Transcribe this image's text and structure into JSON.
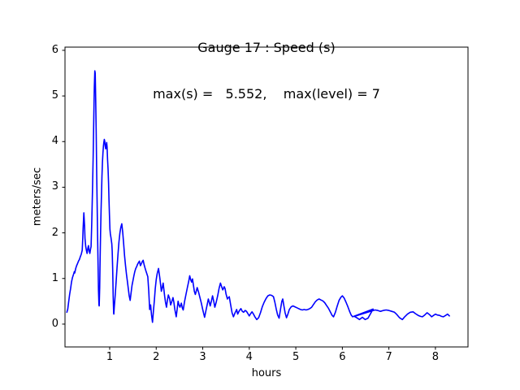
{
  "figure": {
    "background": "#ffffff",
    "text_color": "#000000"
  },
  "chart_data": {
    "type": "line",
    "title": "Gauge 17 : Speed (s)",
    "subtitle": "max(s) =   5.552,    max(level) = 7",
    "xlabel": "hours",
    "ylabel": "meters/sec",
    "stats": {
      "max_s": 5.552,
      "max_level": 7
    },
    "x_ticks": [
      1,
      2,
      3,
      4,
      5,
      6,
      7,
      8
    ],
    "y_ticks": [
      0,
      1,
      2,
      3,
      4,
      5,
      6
    ],
    "xlim": [
      0.04,
      8.7
    ],
    "ylim": [
      -0.5,
      6.07
    ],
    "grid": false,
    "legend_position": "none",
    "line_color": "#0000ff",
    "series": [
      {
        "name": "speed",
        "points": [
          [
            0.08,
            0.26
          ],
          [
            0.1,
            0.33
          ],
          [
            0.12,
            0.5
          ],
          [
            0.14,
            0.65
          ],
          [
            0.16,
            0.78
          ],
          [
            0.18,
            0.92
          ],
          [
            0.2,
            1.02
          ],
          [
            0.22,
            1.08
          ],
          [
            0.24,
            1.15
          ],
          [
            0.25,
            1.12
          ],
          [
            0.27,
            1.22
          ],
          [
            0.29,
            1.28
          ],
          [
            0.31,
            1.33
          ],
          [
            0.33,
            1.38
          ],
          [
            0.35,
            1.42
          ],
          [
            0.37,
            1.48
          ],
          [
            0.39,
            1.53
          ],
          [
            0.41,
            1.62
          ],
          [
            0.42,
            1.85
          ],
          [
            0.43,
            2.1
          ],
          [
            0.445,
            2.44
          ],
          [
            0.46,
            2.15
          ],
          [
            0.47,
            1.88
          ],
          [
            0.485,
            1.7
          ],
          [
            0.5,
            1.62
          ],
          [
            0.515,
            1.55
          ],
          [
            0.53,
            1.66
          ],
          [
            0.545,
            1.72
          ],
          [
            0.56,
            1.6
          ],
          [
            0.575,
            1.55
          ],
          [
            0.59,
            1.65
          ],
          [
            0.6,
            1.7
          ],
          [
            0.615,
            2.2
          ],
          [
            0.63,
            2.9
          ],
          [
            0.645,
            3.7
          ],
          [
            0.66,
            4.6
          ],
          [
            0.67,
            5.2
          ],
          [
            0.68,
            5.55
          ],
          [
            0.69,
            5.5
          ],
          [
            0.7,
            4.9
          ],
          [
            0.71,
            4.2
          ],
          [
            0.72,
            3.45
          ],
          [
            0.73,
            2.7
          ],
          [
            0.74,
            1.95
          ],
          [
            0.75,
            1.3
          ],
          [
            0.76,
            0.75
          ],
          [
            0.77,
            0.42
          ],
          [
            0.775,
            0.4
          ],
          [
            0.785,
            0.8
          ],
          [
            0.795,
            1.4
          ],
          [
            0.805,
            2.0
          ],
          [
            0.815,
            2.5
          ],
          [
            0.825,
            2.9
          ],
          [
            0.835,
            3.25
          ],
          [
            0.845,
            3.55
          ],
          [
            0.855,
            3.75
          ],
          [
            0.865,
            3.9
          ],
          [
            0.875,
            3.98
          ],
          [
            0.885,
            4.05
          ],
          [
            0.895,
            4.0
          ],
          [
            0.905,
            3.9
          ],
          [
            0.915,
            3.84
          ],
          [
            0.925,
            3.92
          ],
          [
            0.935,
            3.98
          ],
          [
            0.945,
            3.88
          ],
          [
            0.955,
            3.6
          ],
          [
            0.965,
            3.4
          ],
          [
            0.975,
            3.1
          ],
          [
            0.985,
            2.75
          ],
          [
            0.995,
            2.4
          ],
          [
            1.005,
            2.08
          ],
          [
            1.015,
            1.98
          ],
          [
            1.03,
            1.88
          ],
          [
            1.045,
            1.76
          ],
          [
            1.055,
            1.6
          ],
          [
            1.065,
            1.2
          ],
          [
            1.075,
            0.6
          ],
          [
            1.085,
            0.24
          ],
          [
            1.09,
            0.22
          ],
          [
            1.1,
            0.38
          ],
          [
            1.12,
            0.66
          ],
          [
            1.14,
            0.95
          ],
          [
            1.16,
            1.25
          ],
          [
            1.18,
            1.55
          ],
          [
            1.2,
            1.8
          ],
          [
            1.22,
            2.0
          ],
          [
            1.24,
            2.12
          ],
          [
            1.26,
            2.2
          ],
          [
            1.28,
            2.02
          ],
          [
            1.3,
            1.76
          ],
          [
            1.32,
            1.5
          ],
          [
            1.34,
            1.28
          ],
          [
            1.36,
            1.1
          ],
          [
            1.38,
            0.95
          ],
          [
            1.4,
            0.78
          ],
          [
            1.42,
            0.62
          ],
          [
            1.44,
            0.52
          ],
          [
            1.46,
            0.68
          ],
          [
            1.48,
            0.85
          ],
          [
            1.5,
            0.95
          ],
          [
            1.52,
            1.06
          ],
          [
            1.54,
            1.15
          ],
          [
            1.56,
            1.22
          ],
          [
            1.58,
            1.26
          ],
          [
            1.6,
            1.31
          ],
          [
            1.62,
            1.35
          ],
          [
            1.64,
            1.38
          ],
          [
            1.66,
            1.28
          ],
          [
            1.68,
            1.32
          ],
          [
            1.7,
            1.37
          ],
          [
            1.72,
            1.4
          ],
          [
            1.74,
            1.3
          ],
          [
            1.76,
            1.23
          ],
          [
            1.78,
            1.16
          ],
          [
            1.8,
            1.1
          ],
          [
            1.82,
            1.04
          ],
          [
            1.84,
            0.72
          ],
          [
            1.86,
            0.32
          ],
          [
            1.88,
            0.42
          ],
          [
            1.9,
            0.2
          ],
          [
            1.92,
            0.04
          ],
          [
            1.94,
            0.28
          ],
          [
            1.96,
            0.52
          ],
          [
            1.98,
            0.78
          ],
          [
            2.0,
            0.98
          ],
          [
            2.02,
            1.1
          ],
          [
            2.05,
            1.22
          ],
          [
            2.08,
            1.0
          ],
          [
            2.11,
            0.72
          ],
          [
            2.13,
            0.8
          ],
          [
            2.15,
            0.9
          ],
          [
            2.18,
            0.62
          ],
          [
            2.2,
            0.48
          ],
          [
            2.22,
            0.37
          ],
          [
            2.24,
            0.52
          ],
          [
            2.26,
            0.64
          ],
          [
            2.29,
            0.55
          ],
          [
            2.31,
            0.42
          ],
          [
            2.33,
            0.48
          ],
          [
            2.36,
            0.58
          ],
          [
            2.38,
            0.48
          ],
          [
            2.4,
            0.32
          ],
          [
            2.43,
            0.16
          ],
          [
            2.45,
            0.32
          ],
          [
            2.47,
            0.5
          ],
          [
            2.49,
            0.42
          ],
          [
            2.51,
            0.37
          ],
          [
            2.54,
            0.46
          ],
          [
            2.56,
            0.36
          ],
          [
            2.58,
            0.31
          ],
          [
            2.61,
            0.5
          ],
          [
            2.64,
            0.65
          ],
          [
            2.67,
            0.8
          ],
          [
            2.7,
            0.95
          ],
          [
            2.72,
            1.06
          ],
          [
            2.74,
            0.98
          ],
          [
            2.76,
            0.92
          ],
          [
            2.78,
            0.99
          ],
          [
            2.8,
            0.85
          ],
          [
            2.82,
            0.72
          ],
          [
            2.84,
            0.65
          ],
          [
            2.86,
            0.72
          ],
          [
            2.88,
            0.8
          ],
          [
            2.91,
            0.7
          ],
          [
            2.94,
            0.58
          ],
          [
            2.97,
            0.46
          ],
          [
            3.0,
            0.32
          ],
          [
            3.04,
            0.15
          ],
          [
            3.07,
            0.3
          ],
          [
            3.1,
            0.45
          ],
          [
            3.12,
            0.55
          ],
          [
            3.14,
            0.48
          ],
          [
            3.16,
            0.4
          ],
          [
            3.19,
            0.52
          ],
          [
            3.21,
            0.62
          ],
          [
            3.24,
            0.48
          ],
          [
            3.26,
            0.37
          ],
          [
            3.29,
            0.48
          ],
          [
            3.32,
            0.62
          ],
          [
            3.35,
            0.78
          ],
          [
            3.38,
            0.9
          ],
          [
            3.4,
            0.84
          ],
          [
            3.43,
            0.75
          ],
          [
            3.46,
            0.82
          ],
          [
            3.48,
            0.78
          ],
          [
            3.5,
            0.66
          ],
          [
            3.53,
            0.55
          ],
          [
            3.55,
            0.58
          ],
          [
            3.57,
            0.6
          ],
          [
            3.6,
            0.42
          ],
          [
            3.63,
            0.25
          ],
          [
            3.66,
            0.16
          ],
          [
            3.69,
            0.24
          ],
          [
            3.71,
            0.28
          ],
          [
            3.73,
            0.32
          ],
          [
            3.75,
            0.22
          ],
          [
            3.77,
            0.26
          ],
          [
            3.79,
            0.3
          ],
          [
            3.82,
            0.34
          ],
          [
            3.85,
            0.28
          ],
          [
            3.88,
            0.26
          ],
          [
            3.91,
            0.3
          ],
          [
            3.94,
            0.28
          ],
          [
            3.97,
            0.23
          ],
          [
            4.0,
            0.18
          ],
          [
            4.03,
            0.23
          ],
          [
            4.06,
            0.27
          ],
          [
            4.09,
            0.22
          ],
          [
            4.12,
            0.16
          ],
          [
            4.16,
            0.1
          ],
          [
            4.2,
            0.14
          ],
          [
            4.24,
            0.25
          ],
          [
            4.28,
            0.38
          ],
          [
            4.32,
            0.48
          ],
          [
            4.36,
            0.56
          ],
          [
            4.4,
            0.62
          ],
          [
            4.44,
            0.64
          ],
          [
            4.48,
            0.63
          ],
          [
            4.52,
            0.6
          ],
          [
            4.55,
            0.48
          ],
          [
            4.58,
            0.33
          ],
          [
            4.61,
            0.2
          ],
          [
            4.64,
            0.13
          ],
          [
            4.67,
            0.32
          ],
          [
            4.7,
            0.5
          ],
          [
            4.72,
            0.55
          ],
          [
            4.74,
            0.42
          ],
          [
            4.77,
            0.25
          ],
          [
            4.8,
            0.14
          ],
          [
            4.83,
            0.22
          ],
          [
            4.86,
            0.32
          ],
          [
            4.9,
            0.38
          ],
          [
            4.94,
            0.4
          ],
          [
            4.98,
            0.38
          ],
          [
            5.02,
            0.36
          ],
          [
            5.06,
            0.34
          ],
          [
            5.1,
            0.32
          ],
          [
            5.14,
            0.31
          ],
          [
            5.18,
            0.32
          ],
          [
            5.22,
            0.31
          ],
          [
            5.26,
            0.32
          ],
          [
            5.3,
            0.34
          ],
          [
            5.34,
            0.37
          ],
          [
            5.38,
            0.43
          ],
          [
            5.42,
            0.49
          ],
          [
            5.46,
            0.53
          ],
          [
            5.5,
            0.55
          ],
          [
            5.54,
            0.53
          ],
          [
            5.58,
            0.51
          ],
          [
            5.62,
            0.47
          ],
          [
            5.66,
            0.41
          ],
          [
            5.7,
            0.35
          ],
          [
            5.74,
            0.27
          ],
          [
            5.78,
            0.19
          ],
          [
            5.81,
            0.16
          ],
          [
            5.85,
            0.26
          ],
          [
            5.89,
            0.4
          ],
          [
            5.93,
            0.52
          ],
          [
            5.97,
            0.59
          ],
          [
            6.0,
            0.62
          ],
          [
            6.04,
            0.57
          ],
          [
            6.08,
            0.48
          ],
          [
            6.12,
            0.38
          ],
          [
            6.16,
            0.27
          ],
          [
            6.19,
            0.2
          ],
          [
            6.22,
            0.16
          ],
          [
            6.66,
            0.33
          ],
          [
            6.55,
            0.13
          ],
          [
            6.49,
            0.1
          ],
          [
            6.43,
            0.15
          ],
          [
            6.37,
            0.1
          ],
          [
            6.31,
            0.14
          ],
          [
            6.26,
            0.17
          ],
          [
            6.7,
            0.31
          ],
          [
            6.76,
            0.3
          ],
          [
            6.82,
            0.28
          ],
          [
            6.88,
            0.3
          ],
          [
            6.94,
            0.31
          ],
          [
            7.0,
            0.3
          ],
          [
            7.06,
            0.28
          ],
          [
            7.12,
            0.26
          ],
          [
            7.17,
            0.21
          ],
          [
            7.23,
            0.14
          ],
          [
            7.29,
            0.1
          ],
          [
            7.34,
            0.16
          ],
          [
            7.4,
            0.22
          ],
          [
            7.46,
            0.26
          ],
          [
            7.52,
            0.27
          ],
          [
            7.57,
            0.23
          ],
          [
            7.63,
            0.19
          ],
          [
            7.68,
            0.17
          ],
          [
            7.72,
            0.16
          ],
          [
            7.77,
            0.2
          ],
          [
            7.82,
            0.25
          ],
          [
            7.87,
            0.21
          ],
          [
            7.92,
            0.16
          ],
          [
            7.96,
            0.19
          ],
          [
            8.0,
            0.22
          ],
          [
            8.04,
            0.2
          ],
          [
            8.09,
            0.19
          ],
          [
            8.13,
            0.17
          ],
          [
            8.17,
            0.16
          ],
          [
            8.22,
            0.19
          ],
          [
            8.26,
            0.22
          ],
          [
            8.3,
            0.18
          ]
        ]
      }
    ]
  }
}
